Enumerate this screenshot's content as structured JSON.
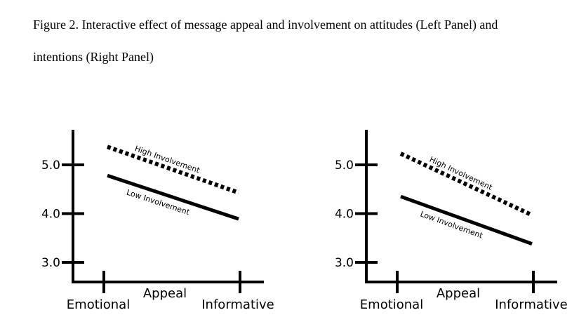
{
  "caption": {
    "line1": "Figure 2. Interactive effect of message appeal and involvement on attitudes (Left Panel) and",
    "line2": "intentions (Right Panel)"
  },
  "chart_data": [
    {
      "type": "line",
      "panel": "left",
      "title": "",
      "xlabel": "Appeal",
      "ylabel": "",
      "categories": [
        "Emotional",
        "Informative"
      ],
      "yticks": [
        "3.0",
        "4.0",
        "5.0"
      ],
      "ytick_values": [
        3.0,
        4.0,
        5.0
      ],
      "ylim": [
        2.6,
        5.7
      ],
      "grid": false,
      "series": [
        {
          "name": "High Involvement",
          "values": [
            5.37,
            4.43
          ],
          "style": "dotted"
        },
        {
          "name": "Low Involvement",
          "values": [
            4.78,
            3.89
          ],
          "style": "solid"
        }
      ]
    },
    {
      "type": "line",
      "panel": "right",
      "title": "",
      "xlabel": "Appeal",
      "ylabel": "",
      "categories": [
        "Emotional",
        "Informative"
      ],
      "yticks": [
        "3.0",
        "4.0",
        "5.0"
      ],
      "ytick_values": [
        3.0,
        4.0,
        5.0
      ],
      "ylim": [
        2.6,
        5.7
      ],
      "grid": false,
      "series": [
        {
          "name": "High Involvement",
          "values": [
            5.23,
            3.97
          ],
          "style": "dotted"
        },
        {
          "name": "Low Involvement",
          "values": [
            4.35,
            3.38
          ],
          "style": "solid"
        }
      ]
    }
  ]
}
